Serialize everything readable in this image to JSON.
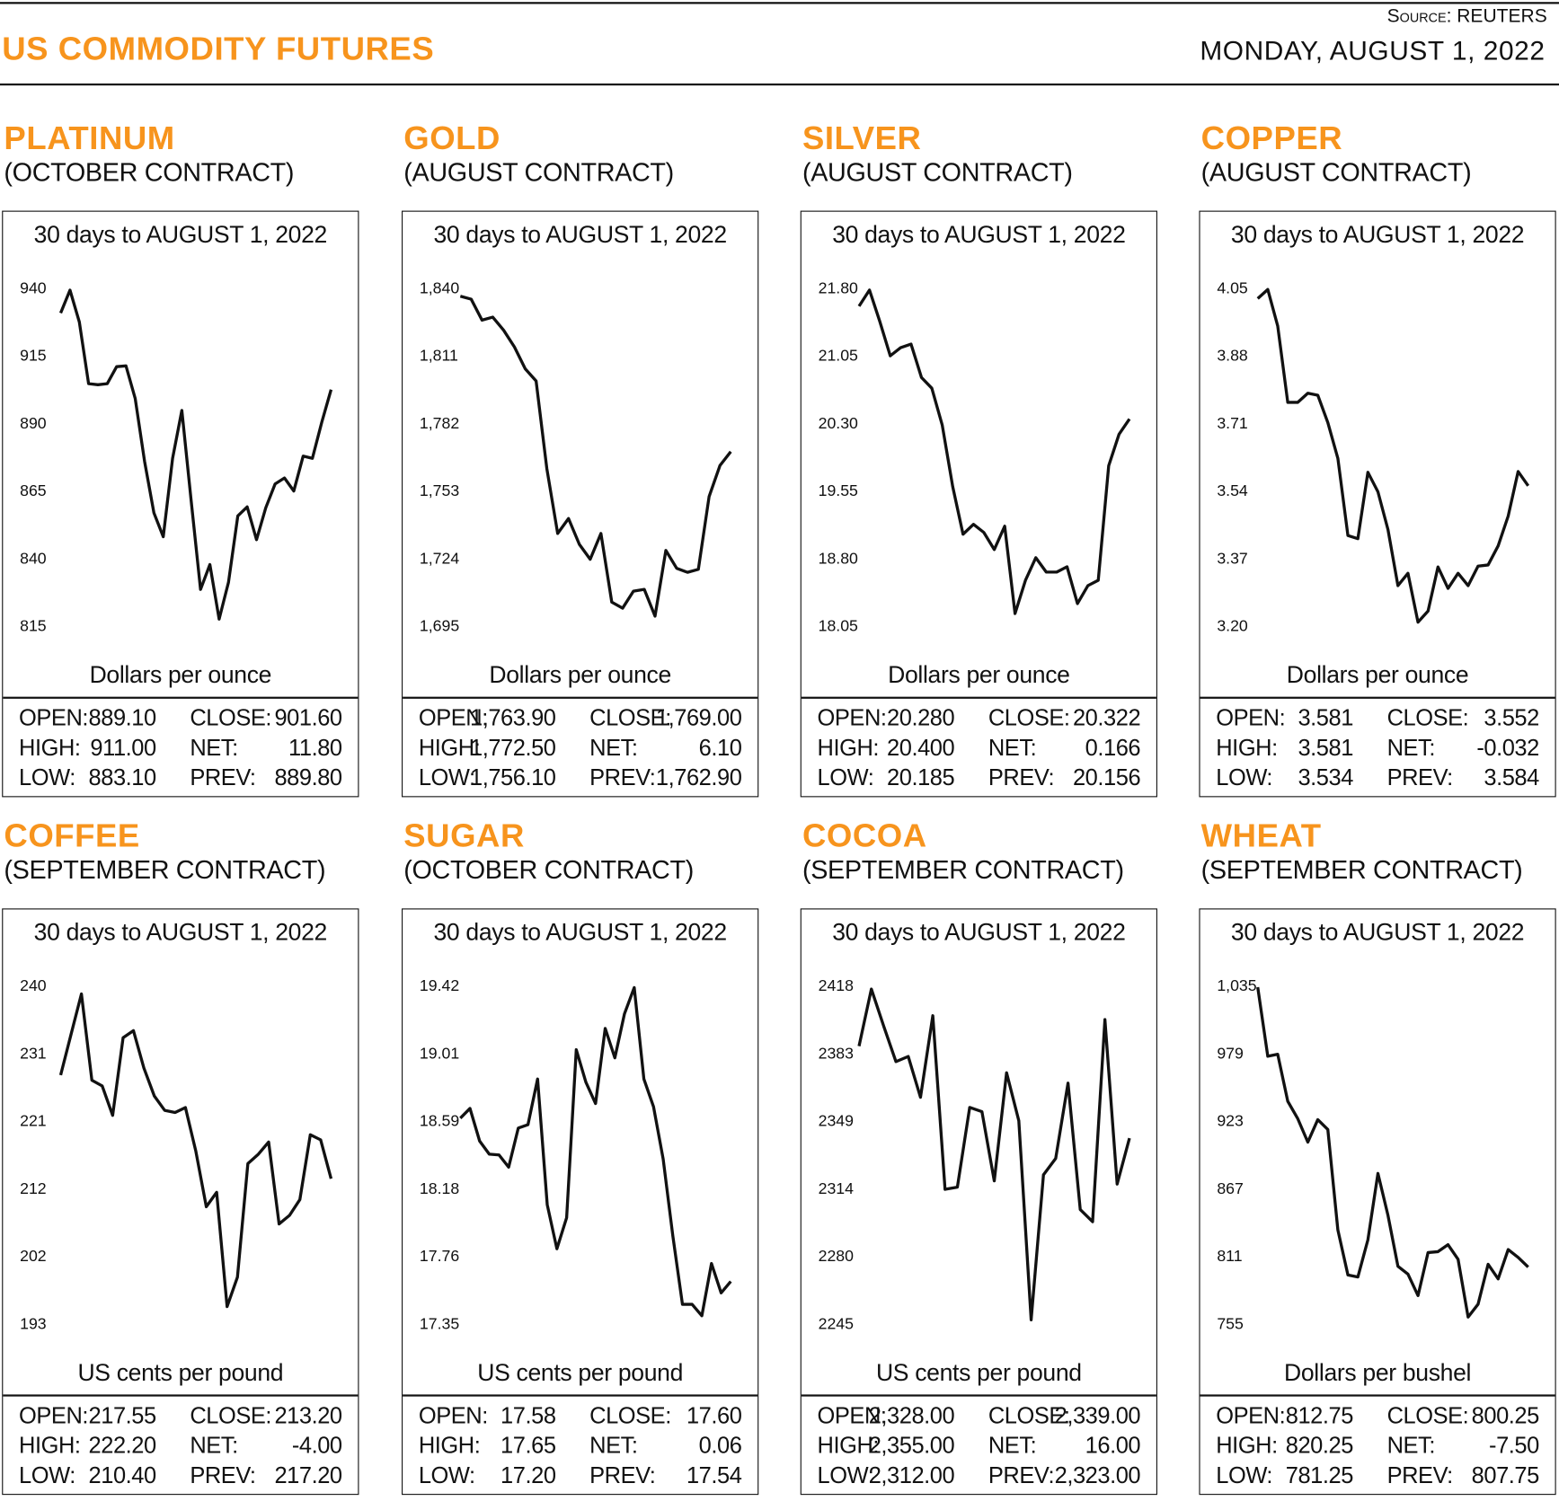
{
  "header": {
    "title": "US COMMODITY FUTURES",
    "source": "Source: REUTERS",
    "date": "MONDAY, AUGUST 1, 2022"
  },
  "colors": {
    "accent": "#F7941D",
    "line": "#111111"
  },
  "panels": [
    {
      "name": "PLATINUM",
      "contract": "(OCTOBER CONTRACT)",
      "stats": {
        "open": "889.10",
        "close": "901.60",
        "high": "911.00",
        "net": "11.80",
        "low": "883.10",
        "prev": "889.80"
      }
    },
    {
      "name": "GOLD",
      "contract": "(AUGUST CONTRACT)",
      "stats": {
        "open": "1,763.90",
        "close": "1,769.00",
        "high": "1,772.50",
        "net": "6.10",
        "low": "1,756.10",
        "prev": "1,762.90"
      }
    },
    {
      "name": "SILVER",
      "contract": "(AUGUST CONTRACT)",
      "stats": {
        "open": "20.280",
        "close": "20.322",
        "high": "20.400",
        "net": "0.166",
        "low": "20.185",
        "prev": "20.156"
      }
    },
    {
      "name": "COPPER",
      "contract": "(AUGUST CONTRACT)",
      "stats": {
        "open": "3.581",
        "close": "3.552",
        "high": "3.581",
        "net": "-0.032",
        "low": "3.534",
        "prev": "3.584"
      }
    },
    {
      "name": "COFFEE",
      "contract": "(SEPTEMBER CONTRACT)",
      "stats": {
        "open": "217.55",
        "close": "213.20",
        "high": "222.20",
        "net": "-4.00",
        "low": "210.40",
        "prev": "217.20"
      }
    },
    {
      "name": "SUGAR",
      "contract": "(OCTOBER CONTRACT)",
      "stats": {
        "open": "17.58",
        "close": "17.60",
        "high": "17.65",
        "net": "0.06",
        "low": "17.20",
        "prev": "17.54"
      }
    },
    {
      "name": "COCOA",
      "contract": "(SEPTEMBER CONTRACT)",
      "stats": {
        "open": "2,328.00",
        "close": "2,339.00",
        "high": "2,355.00",
        "net": "16.00",
        "low": "2,312.00",
        "prev": "2,323.00"
      }
    },
    {
      "name": "WHEAT",
      "contract": "(SEPTEMBER CONTRACT)",
      "stats": {
        "open": "812.75",
        "close": "800.25",
        "high": "820.25",
        "net": "-7.50",
        "low": "781.25",
        "prev": "807.75"
      }
    }
  ],
  "stat_labels": {
    "open": "OPEN:",
    "close": "CLOSE:",
    "high": "HIGH:",
    "net": "NET:",
    "low": "LOW:",
    "prev": "PREV:"
  },
  "chart_data": [
    {
      "type": "line",
      "title": "30 days to AUGUST 1, 2022",
      "ylabel": "Dollars per ounce",
      "yticks": [
        "940",
        "915",
        "890",
        "865",
        "840",
        "815"
      ],
      "ylim": [
        815,
        940
      ],
      "grid": false,
      "values": [
        930.8,
        939.3,
        927.5,
        904.7,
        904.3,
        904.7,
        911.0,
        911.3,
        899.2,
        876.0,
        856.9,
        848.1,
        877.1,
        894.8,
        861.3,
        828.6,
        837.8,
        817.6,
        831.2,
        855.8,
        859.1,
        847.0,
        858.8,
        867.6,
        869.8,
        865.0,
        877.9,
        877.1,
        890.4,
        902.5
      ]
    },
    {
      "type": "line",
      "title": "30 days to AUGUST 1, 2022",
      "ylabel": "Dollars per ounce",
      "yticks": [
        "1,840",
        "1,811",
        "1,782",
        "1,753",
        "1,724",
        "1,695"
      ],
      "ylim": [
        1695,
        1840
      ],
      "grid": false,
      "values": [
        1836.6,
        1835.3,
        1826.3,
        1827.6,
        1822.0,
        1814.8,
        1805.4,
        1800.2,
        1762.6,
        1734.8,
        1741.2,
        1730.1,
        1723.7,
        1734.8,
        1705.3,
        1702.7,
        1710.0,
        1710.8,
        1699.3,
        1727.5,
        1719.8,
        1718.1,
        1719.4,
        1750.6,
        1763.9,
        1769.9
      ]
    },
    {
      "type": "line",
      "title": "30 days to AUGUST 1, 2022",
      "ylabel": "Dollars per ounce",
      "yticks": [
        "21.80",
        "21.05",
        "20.30",
        "19.55",
        "18.80",
        "18.05"
      ],
      "ylim": [
        18.05,
        21.8
      ],
      "grid": false,
      "values": [
        21.6,
        21.78,
        21.43,
        21.05,
        21.14,
        21.18,
        20.81,
        20.69,
        20.28,
        19.6,
        19.07,
        19.18,
        19.09,
        18.9,
        19.16,
        18.19,
        18.56,
        18.81,
        18.65,
        18.65,
        18.71,
        18.3,
        18.5,
        18.56,
        19.83,
        20.18,
        20.35
      ]
    },
    {
      "type": "line",
      "title": "30 days to AUGUST 1, 2022",
      "ylabel": "Dollars per ounce",
      "yticks": [
        "4.05",
        "3.88",
        "3.71",
        "3.54",
        "3.37",
        "3.20"
      ],
      "ylim": [
        3.2,
        4.05
      ],
      "grid": false,
      "values": [
        4.024,
        4.047,
        3.955,
        3.763,
        3.763,
        3.786,
        3.781,
        3.712,
        3.622,
        3.428,
        3.42,
        3.587,
        3.538,
        3.443,
        3.302,
        3.333,
        3.21,
        3.238,
        3.349,
        3.295,
        3.333,
        3.302,
        3.351,
        3.354,
        3.402,
        3.477,
        3.589,
        3.553
      ]
    },
    {
      "type": "line",
      "title": "30 days to AUGUST 1, 2022",
      "ylabel": "US cents per pound",
      "yticks": [
        "240",
        "231",
        "221",
        "212",
        "202",
        "193"
      ],
      "ylim": [
        193,
        240
      ],
      "grid": false,
      "values": [
        227.6,
        233.3,
        238.9,
        226.9,
        226.1,
        222.0,
        232.8,
        233.8,
        228.6,
        224.7,
        222.7,
        222.4,
        223.1,
        217.0,
        209.3,
        211.3,
        195.4,
        199.5,
        215.3,
        216.6,
        218.3,
        206.9,
        208.1,
        210.3,
        219.3,
        218.6,
        213.2
      ]
    },
    {
      "type": "line",
      "title": "30 days to AUGUST 1, 2022",
      "ylabel": "US cents per pound",
      "yticks": [
        "19.42",
        "19.01",
        "18.59",
        "18.18",
        "17.76",
        "17.35"
      ],
      "ylim": [
        17.35,
        19.42
      ],
      "grid": false,
      "values": [
        18.61,
        18.67,
        18.47,
        18.39,
        18.385,
        18.31,
        18.55,
        18.57,
        18.85,
        18.08,
        17.81,
        18.0,
        19.03,
        18.83,
        18.7,
        19.16,
        18.98,
        19.25,
        19.41,
        18.85,
        18.68,
        18.36,
        17.89,
        17.47,
        17.47,
        17.4,
        17.72,
        17.54,
        17.61
      ]
    },
    {
      "type": "line",
      "title": "30 days to AUGUST 1, 2022",
      "ylabel": "US cents per pound",
      "yticks": [
        "2418",
        "2383",
        "2349",
        "2314",
        "2280",
        "2245"
      ],
      "ylim": [
        2245,
        2418
      ],
      "grid": false,
      "values": [
        2387.2,
        2416.4,
        2397.6,
        2379.3,
        2381.9,
        2361.0,
        2402.8,
        2313.9,
        2315.0,
        2355.8,
        2353.7,
        2318.2,
        2373.6,
        2349.0,
        2247.1,
        2321.3,
        2329.7,
        2368.3,
        2303.5,
        2297.3,
        2400.8,
        2316.6,
        2340.1
      ]
    },
    {
      "type": "line",
      "title": "30 days to AUGUST 1, 2022",
      "ylabel": "Dollars per bushel",
      "yticks": [
        "1,035",
        "979",
        "923",
        "867",
        "811",
        "755"
      ],
      "ylim": [
        755,
        1035
      ],
      "grid": false,
      "values": [
        1034,
        976.8,
        978.4,
        939.5,
        925.0,
        905.6,
        924.2,
        916.1,
        832.8,
        795.5,
        793.9,
        824.7,
        879.7,
        844.9,
        802.8,
        796.3,
        778.5,
        814.1,
        814.9,
        820.6,
        808.5,
        760.7,
        771.3,
        804.4,
        792.3,
        816.6,
        810.1,
        802.1
      ]
    }
  ]
}
